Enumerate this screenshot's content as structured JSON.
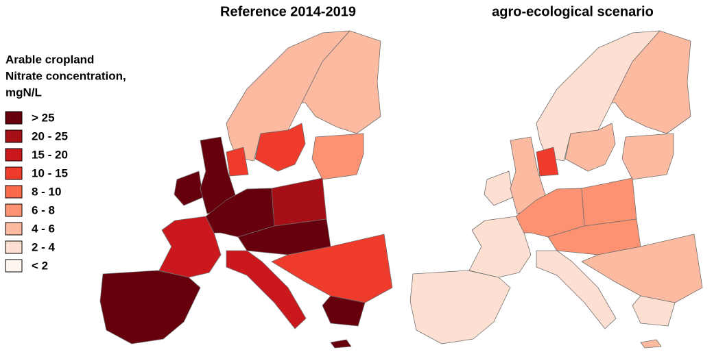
{
  "maps": [
    {
      "title": "Reference 2014-2019"
    },
    {
      "title": "agro-ecological scenario"
    }
  ],
  "legend": {
    "title": [
      "Arable cropland",
      "Nitrate concentration,",
      "mgN/L"
    ],
    "items": [
      {
        "label": "> 25",
        "color": "#67000d"
      },
      {
        "label": "20 - 25",
        "color": "#a50f15"
      },
      {
        "label": "15 - 20",
        "color": "#cb181d"
      },
      {
        "label": "10 - 15",
        "color": "#ef3b2c"
      },
      {
        "label": "8 - 10",
        "color": "#fb6a4a"
      },
      {
        "label": "6 - 8",
        "color": "#fc9272"
      },
      {
        "label": "4 - 6",
        "color": "#fcbba1"
      },
      {
        "label": "2 - 4",
        "color": "#fee0d2"
      },
      {
        "label": "< 2",
        "color": "#fff5f0"
      }
    ]
  }
}
